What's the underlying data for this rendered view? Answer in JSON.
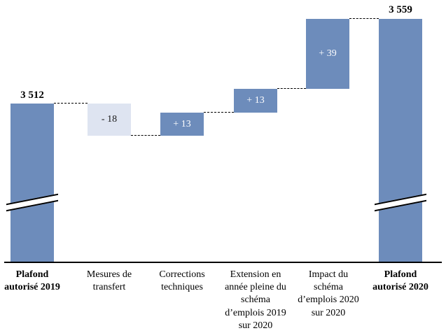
{
  "chart_data": {
    "type": "bar",
    "subtype": "waterfall",
    "title": "",
    "categories": [
      "Plafond autorisé 2019",
      "Mesures de transfert",
      "Corrections techniques",
      "Extension en année pleine du schéma d’emplois 2019 sur 2020",
      "Impact du schéma d’emplois 2020 sur 2020",
      "Plafond autorisé 2020"
    ],
    "bar_labels": [
      "3 512",
      "- 18",
      "+ 13",
      "+ 13",
      "+ 39",
      "3 559"
    ],
    "values": [
      3512,
      -18,
      13,
      13,
      39,
      3559
    ],
    "running_totals": [
      3512,
      3494,
      3507,
      3520,
      3559,
      3559
    ],
    "bar_roles": [
      "total",
      "decrease",
      "increase",
      "increase",
      "increase",
      "total"
    ],
    "colors": {
      "total_bar": "#6D8CBB",
      "increase_bar": "#6D8CBB",
      "decrease_bar": "#DEE4F1",
      "label_on_blue": "#FFFFFF",
      "label_on_light": "#1A1A1A",
      "connector": "#000000",
      "axis": "#000000",
      "background": "#FFFFFF"
    },
    "legend": "none",
    "grid": false,
    "y_axis_visible": false,
    "axis_break_on_total_bars": true,
    "connector_style": "dashed"
  }
}
